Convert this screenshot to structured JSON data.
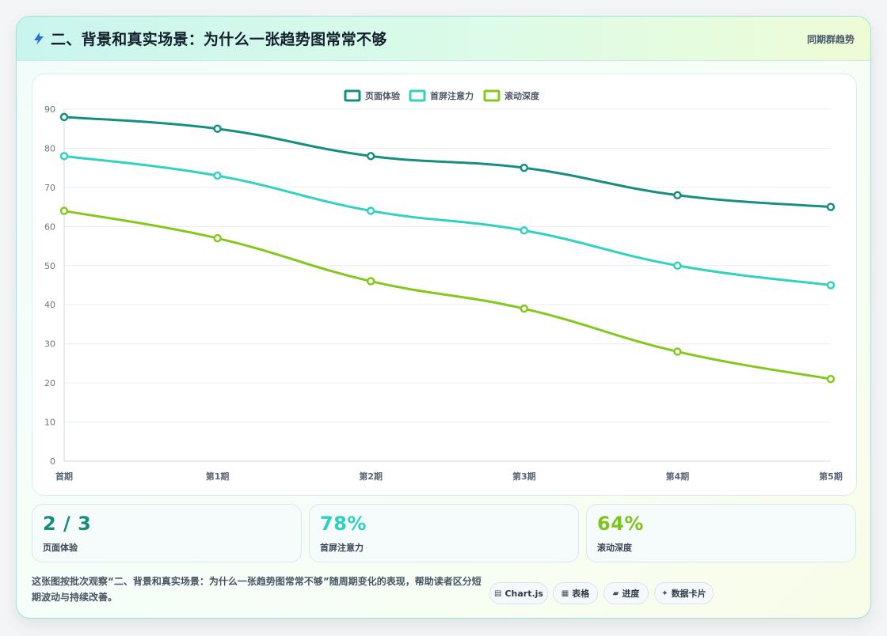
{
  "header": {
    "title": "二、背景和真实场景：为什么一张趋势图常常不够",
    "link": "同期群趋势",
    "icon": "lightning-icon"
  },
  "chart_data": {
    "type": "line",
    "categories": [
      "首期",
      "第1期",
      "第2期",
      "第3期",
      "第4期",
      "第5期"
    ],
    "series": [
      {
        "name": "页面体验",
        "values": [
          88,
          85,
          78,
          75,
          68,
          65
        ],
        "color": "#168f80"
      },
      {
        "name": "首屏注意力",
        "values": [
          78,
          73,
          64,
          59,
          50,
          45
        ],
        "color": "#32d1c0"
      },
      {
        "name": "滚动深度",
        "values": [
          64,
          57,
          46,
          39,
          28,
          21
        ],
        "color": "#84c81d"
      }
    ],
    "ylim": [
      0,
      90
    ],
    "yticks": [
      0,
      10,
      20,
      30,
      40,
      50,
      60,
      70,
      80,
      90
    ],
    "grid": true,
    "legend": "top-center"
  },
  "stats": [
    {
      "value": "2 / 3",
      "label": "页面体验",
      "color": "#178c7d"
    },
    {
      "value": "78%",
      "label": "首屏注意力",
      "color": "#2fd0bf"
    },
    {
      "value": "64%",
      "label": "滚动深度",
      "color": "#7fc41c"
    }
  ],
  "footer": {
    "text": "这张图按批次观察“二、背景和真实场景：为什么一张趋势图常常不够”随周期变化的表现，帮助读者区分短期波动与持续改善。"
  },
  "chips": [
    {
      "icon": "▤",
      "label": "Chart.js",
      "icon_name": "chart-icon"
    },
    {
      "icon": "▦",
      "label": "表格",
      "icon_name": "table-icon"
    },
    {
      "icon": "▰",
      "label": "进度",
      "icon_name": "progress-icon"
    },
    {
      "icon": "✦",
      "label": "数据卡片",
      "icon_name": "sparkle-icon"
    }
  ]
}
